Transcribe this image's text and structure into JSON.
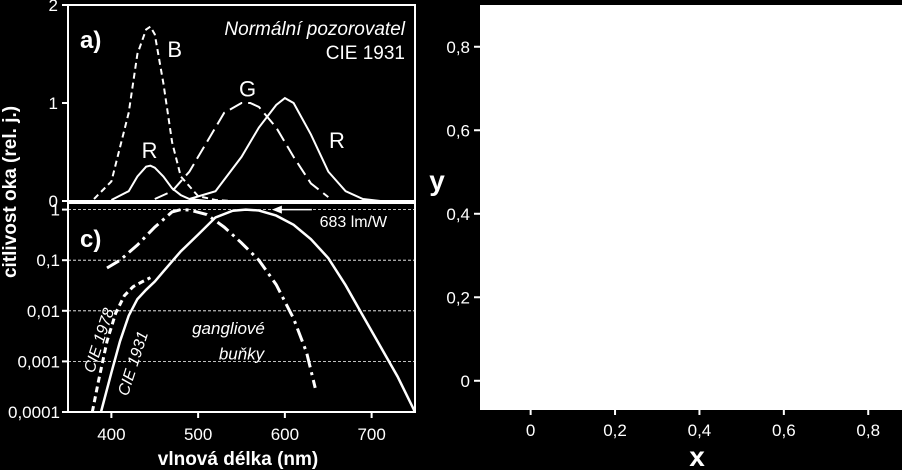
{
  "chart_data": [
    {
      "id": "a",
      "type": "line",
      "panel_label": "a)",
      "annotation_lines": [
        "Normální pozorovatel",
        "CIE 1931"
      ],
      "ylim": [
        0,
        2
      ],
      "yticks": [
        "0",
        "1",
        "2"
      ],
      "series": [
        {
          "name": "B",
          "style": "dashed",
          "x": [
            380,
            400,
            420,
            430,
            440,
            445,
            450,
            460,
            470,
            480,
            500,
            520,
            540
          ],
          "y": [
            0.02,
            0.2,
            0.9,
            1.5,
            1.75,
            1.78,
            1.7,
            1.2,
            0.6,
            0.25,
            0.05,
            0.01,
            0
          ]
        },
        {
          "name": "R",
          "style": "solid",
          "x": [
            400,
            420,
            430,
            440,
            445,
            450,
            460,
            470,
            480,
            490,
            500,
            510
          ],
          "y": [
            0.01,
            0.1,
            0.25,
            0.35,
            0.36,
            0.34,
            0.25,
            0.13,
            0.06,
            0.02,
            0.01,
            0
          ]
        },
        {
          "name": "G",
          "style": "longdash",
          "x": [
            450,
            470,
            490,
            510,
            530,
            550,
            560,
            570,
            590,
            610,
            630,
            650
          ],
          "y": [
            0.02,
            0.1,
            0.3,
            0.6,
            0.9,
            1.0,
            1.0,
            0.96,
            0.75,
            0.45,
            0.18,
            0.04
          ]
        },
        {
          "name": "R",
          "style": "solid",
          "x": [
            490,
            520,
            550,
            570,
            590,
            600,
            610,
            630,
            650,
            670,
            690,
            710
          ],
          "y": [
            0.02,
            0.1,
            0.45,
            0.75,
            0.98,
            1.05,
            1.0,
            0.68,
            0.3,
            0.1,
            0.02,
            0
          ]
        }
      ],
      "series_labels": [
        {
          "text": "B",
          "x": 473,
          "y": 1.55
        },
        {
          "text": "R",
          "x": 444,
          "y": 0.52
        },
        {
          "text": "G",
          "x": 557,
          "y": 1.15
        },
        {
          "text": "R",
          "x": 660,
          "y": 0.62
        }
      ]
    },
    {
      "id": "c",
      "type": "line",
      "panel_label": "c)",
      "yscale": "log",
      "ylim": [
        0.0001,
        1.35
      ],
      "yticks": [
        "0,0001",
        "0,001",
        "0,01",
        "0,1",
        "1"
      ],
      "ytick_values": [
        0.0001,
        0.001,
        0.01,
        0.1,
        1
      ],
      "grid_values": [
        0.001,
        0.01,
        0.1,
        1
      ],
      "xlim": [
        350,
        750
      ],
      "xticks": [
        "400",
        "500",
        "600",
        "700"
      ],
      "xtick_values": [
        400,
        500,
        600,
        700
      ],
      "xlabel": "vlnová délka (nm)",
      "ylabel": "citlivost oka (rel. j.)",
      "series": [
        {
          "name": "683 lm/W",
          "style": "solid",
          "x": [
            388,
            400,
            410,
            420,
            430,
            440,
            450,
            460,
            480,
            500,
            520,
            540,
            555,
            570,
            590,
            610,
            630,
            650,
            670,
            690,
            710,
            730,
            750
          ],
          "y": [
            0.0001,
            0.0006,
            0.0025,
            0.008,
            0.017,
            0.026,
            0.038,
            0.06,
            0.15,
            0.32,
            0.7,
            0.95,
            1.0,
            0.96,
            0.76,
            0.5,
            0.26,
            0.11,
            0.032,
            0.008,
            0.002,
            0.0005,
            0.0001
          ]
        },
        {
          "name": "CIE 1978",
          "style": "dashed",
          "x": [
            378,
            385,
            395,
            405,
            415,
            425,
            435,
            445
          ],
          "y": [
            0.0001,
            0.0004,
            0.0025,
            0.009,
            0.02,
            0.03,
            0.037,
            0.045
          ]
        },
        {
          "name": "gangliové buňky",
          "style": "dashdot",
          "x": [
            395,
            410,
            430,
            450,
            470,
            480,
            490,
            510,
            530,
            550,
            570,
            590,
            610,
            625,
            635
          ],
          "y": [
            0.07,
            0.1,
            0.2,
            0.45,
            0.9,
            1.0,
            0.98,
            0.8,
            0.45,
            0.22,
            0.1,
            0.033,
            0.007,
            0.0015,
            0.0003
          ]
        }
      ],
      "annotations": [
        {
          "text": "683 lm/W",
          "x": 640,
          "y": 0.6
        },
        {
          "text": "CIE 1978"
        },
        {
          "text": "CIE 1931"
        },
        {
          "text": "gangliové",
          "x": 535,
          "y": 0.0035
        },
        {
          "text": "buňky",
          "x": 550,
          "y": 0.0011
        }
      ]
    },
    {
      "id": "xy",
      "type": "scatter",
      "xlim": [
        -0.12,
        0.88
      ],
      "ylim": [
        -0.07,
        0.9
      ],
      "xticks": [
        "0",
        "0,2",
        "0,4",
        "0,6",
        "0,8"
      ],
      "xtick_values": [
        0,
        0.2,
        0.4,
        0.6,
        0.8
      ],
      "yticks": [
        "0",
        "0,2",
        "0,4",
        "0,6",
        "0,8"
      ],
      "ytick_values": [
        0,
        0.2,
        0.4,
        0.6,
        0.8
      ],
      "xlabel": "x",
      "ylabel": "y"
    }
  ]
}
